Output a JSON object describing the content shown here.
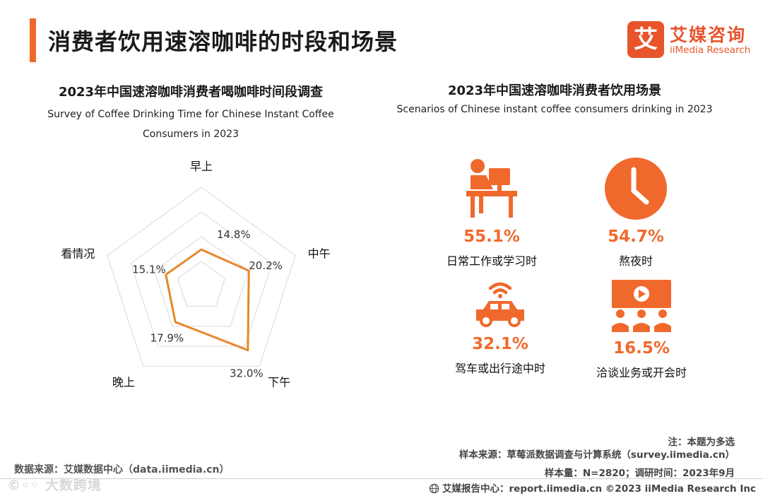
{
  "page": {
    "title": "消费者饮用速溶咖啡的时段和场景"
  },
  "logo": {
    "mark": "艾",
    "name_cn": "艾媒咨询",
    "name_en": "iiMedia Research"
  },
  "left_panel": {
    "title": "2023年中国速溶咖啡消费者喝咖啡时间段调查",
    "subtitle": "Survey of Coffee Drinking Time for Chinese Instant Coffee Consumers in 2023"
  },
  "chart_data": {
    "type": "radar",
    "title": "2023年中国速溶咖啡消费者喝咖啡时间段调查",
    "categories": [
      "早上",
      "中午",
      "下午",
      "晚上",
      "看情况"
    ],
    "values": [
      14.8,
      20.2,
      32.0,
      17.9,
      15.1
    ],
    "value_labels": [
      "14.8%",
      "20.2%",
      "32.0%",
      "17.9%",
      "15.1%"
    ],
    "rmax": 40,
    "grid_levels": 4,
    "series_color": "#e8862a",
    "grid_color": "#d9d9d9"
  },
  "right_panel": {
    "title": "2023年中国速溶咖啡消费者饮用场景",
    "subtitle": "Scenarios of Chinese instant coffee consumers drinking in 2023",
    "accent_color": "#f0692c",
    "scenes": [
      {
        "icon": "desk-worker-icon",
        "pct": "55.1%",
        "label": "日常工作或学习时"
      },
      {
        "icon": "clock-icon",
        "pct": "54.7%",
        "label": "熬夜时"
      },
      {
        "icon": "car-wifi-icon",
        "pct": "32.1%",
        "label": "驾车或出行途中时"
      },
      {
        "icon": "meeting-icon",
        "pct": "16.5%",
        "label": "洽谈业务或开会时"
      }
    ]
  },
  "notes": {
    "note": "注：本题为多选",
    "sample_source": "样本来源：草莓派数据调查与计算系统（survey.iimedia.cn）",
    "sample_size": "样本量：N=2820；调研时间：2023年9月"
  },
  "footer": {
    "data_source": "数据来源：艾媒数据中心（data.iimedia.cn）",
    "watermark": "©◦◦ 大数跨境",
    "report": "艾媒报告中心：report.iimedia.cn  ©2023  iiMedia Research  Inc"
  }
}
